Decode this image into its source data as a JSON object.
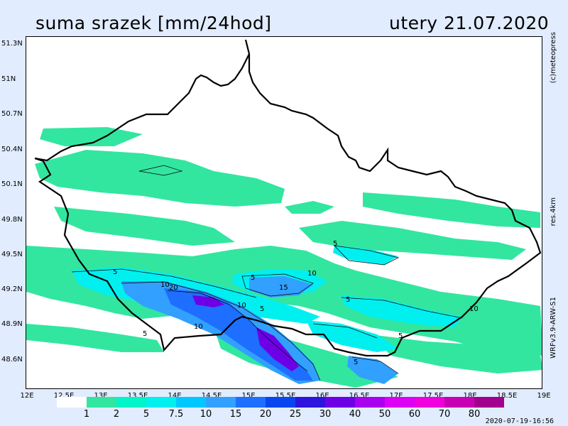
{
  "title": "suma srazek [mm/24hod]",
  "date": "utery 21.07.2020",
  "copyright": "(c)meteopress",
  "resolution": "res.4km",
  "model": "WRFv3.9-ARW-S1",
  "timestamp": "2020-07-19-16:56",
  "lat_labels": [
    "51.3N",
    "51N",
    "50.7N",
    "50.4N",
    "50.1N",
    "49.8N",
    "49.5N",
    "49.2N",
    "48.9N",
    "48.6N"
  ],
  "lon_labels": [
    "12E",
    "12.5E",
    "13E",
    "13.5E",
    "14E",
    "14.5E",
    "15E",
    "15.5E",
    "16E",
    "16.5E",
    "17E",
    "17.5E",
    "18E",
    "18.5E",
    "19E"
  ],
  "legend": {
    "labels": [
      "1",
      "2",
      "5",
      "7.5",
      "10",
      "15",
      "20",
      "25",
      "30",
      "40",
      "50",
      "60",
      "70",
      "80"
    ],
    "colors": [
      "#ffffff",
      "#32e6a0",
      "#00f5c8",
      "#00f0f0",
      "#00c8ff",
      "#32a0ff",
      "#1e6eff",
      "#0a46f0",
      "#2e14dc",
      "#6e00e6",
      "#aa00f0",
      "#dc00f5",
      "#f000dc",
      "#c800b4",
      "#a0008c"
    ]
  },
  "contour_labels": [
    "5",
    "5",
    "5",
    "5",
    "5",
    "5",
    "10",
    "10",
    "10",
    "10",
    "10",
    "15",
    "20",
    "5",
    "5"
  ],
  "colors": {
    "background": "#e1ecff",
    "map_background": "#ffffff",
    "border": "#000000"
  }
}
